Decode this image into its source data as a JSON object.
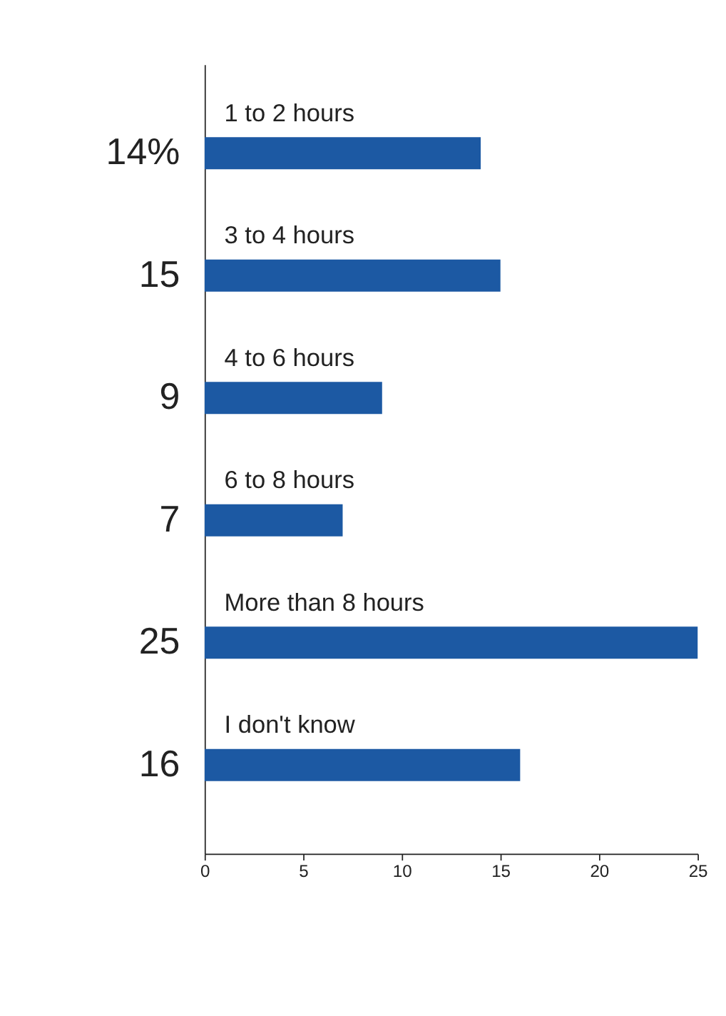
{
  "chart_data": {
    "type": "bar",
    "orientation": "horizontal",
    "categories": [
      "1 to 2 hours",
      "3 to 4 hours",
      "4 to 6 hours",
      "6 to 8 hours",
      "More than 8 hours",
      "I don't know"
    ],
    "values": [
      14,
      15,
      9,
      7,
      25,
      16
    ],
    "value_labels": [
      "14%",
      "15",
      "9",
      "7",
      "25",
      "16"
    ],
    "color": "#1c59a3",
    "xlim": [
      0,
      25
    ],
    "xticks": [
      0,
      5,
      10,
      15,
      20,
      25
    ],
    "tick_labels": "x"
  }
}
